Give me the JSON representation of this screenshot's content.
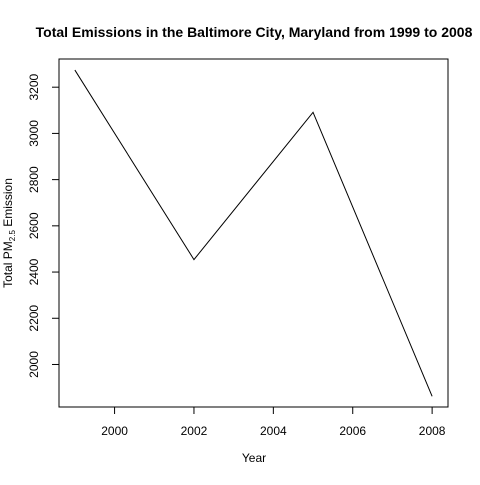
{
  "chart_data": {
    "type": "line",
    "title": "Total Emissions in the Baltimore City, Maryland from 1999 to 2008",
    "xlabel": "Year",
    "ylabel_prefix": "Total PM",
    "ylabel_subscript": "2.5",
    "ylabel_suffix": " Emission",
    "x": [
      1999,
      2002,
      2005,
      2008
    ],
    "y": [
      3274.18,
      2453.92,
      3091.35,
      1862.28
    ],
    "xlim": [
      1998.6,
      2008.4
    ],
    "ylim": [
      1816,
      3322
    ],
    "x_ticks": [
      2000,
      2002,
      2004,
      2006,
      2008
    ],
    "x_tick_labels": [
      "2000",
      "2002",
      "2004",
      "2006",
      "2008"
    ],
    "y_ticks": [
      2000,
      2200,
      2400,
      2600,
      2800,
      3000,
      3200
    ],
    "y_tick_labels": [
      "2000",
      "2200",
      "2400",
      "2600",
      "2800",
      "3000",
      "3200"
    ],
    "grid": false,
    "line_color": "#000000"
  }
}
